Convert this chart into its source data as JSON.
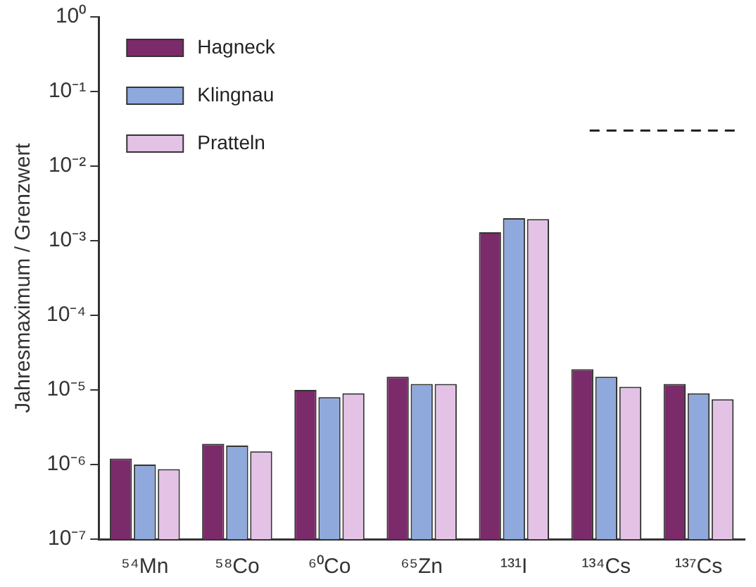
{
  "chart_data": {
    "type": "bar",
    "ylabel": "Jahresmaximum / Grenzwert",
    "log": true,
    "grid": false,
    "legend": "top left",
    "categories": [
      "⁵⁴Mn",
      "⁵⁸Co",
      "⁶⁰Co",
      "⁶⁵Zn",
      "¹³¹I",
      "¹³⁴Cs",
      "¹³⁷Cs"
    ],
    "series": [
      {
        "name": "Hagneck",
        "color": "#7b2a6a",
        "values": [
          1.2e-06,
          1.9e-06,
          1e-05,
          1.5e-05,
          0.0013,
          1.9e-05,
          1.2e-05
        ]
      },
      {
        "name": "Klingnau",
        "color": "#8fa9dc",
        "values": [
          1e-06,
          1.8e-06,
          8e-06,
          1.2e-05,
          0.002,
          1.5e-05,
          9e-06
        ]
      },
      {
        "name": "Pratteln",
        "color": "#e3c2e6",
        "values": [
          8.7e-07,
          1.5e-06,
          9e-06,
          1.2e-05,
          0.00195,
          1.1e-05,
          7.5e-06
        ]
      }
    ],
    "ylim": [
      1e-07,
      1
    ],
    "yticks": [
      {
        "value": 1e-07,
        "label": "10⁻⁷"
      },
      {
        "value": 1e-06,
        "label": "10⁻⁶"
      },
      {
        "value": 1e-05,
        "label": "10⁻⁵"
      },
      {
        "value": 0.0001,
        "label": "10⁻⁴"
      },
      {
        "value": 0.001,
        "label": "10⁻³"
      },
      {
        "value": 0.01,
        "label": "10⁻²"
      },
      {
        "value": 0.1,
        "label": "10⁻¹"
      },
      {
        "value": 1,
        "label": "10⁰"
      }
    ],
    "ref_lines": [
      {
        "axis": "y",
        "value": 0.03,
        "line_style": "dashed",
        "color": "#222222"
      }
    ]
  }
}
